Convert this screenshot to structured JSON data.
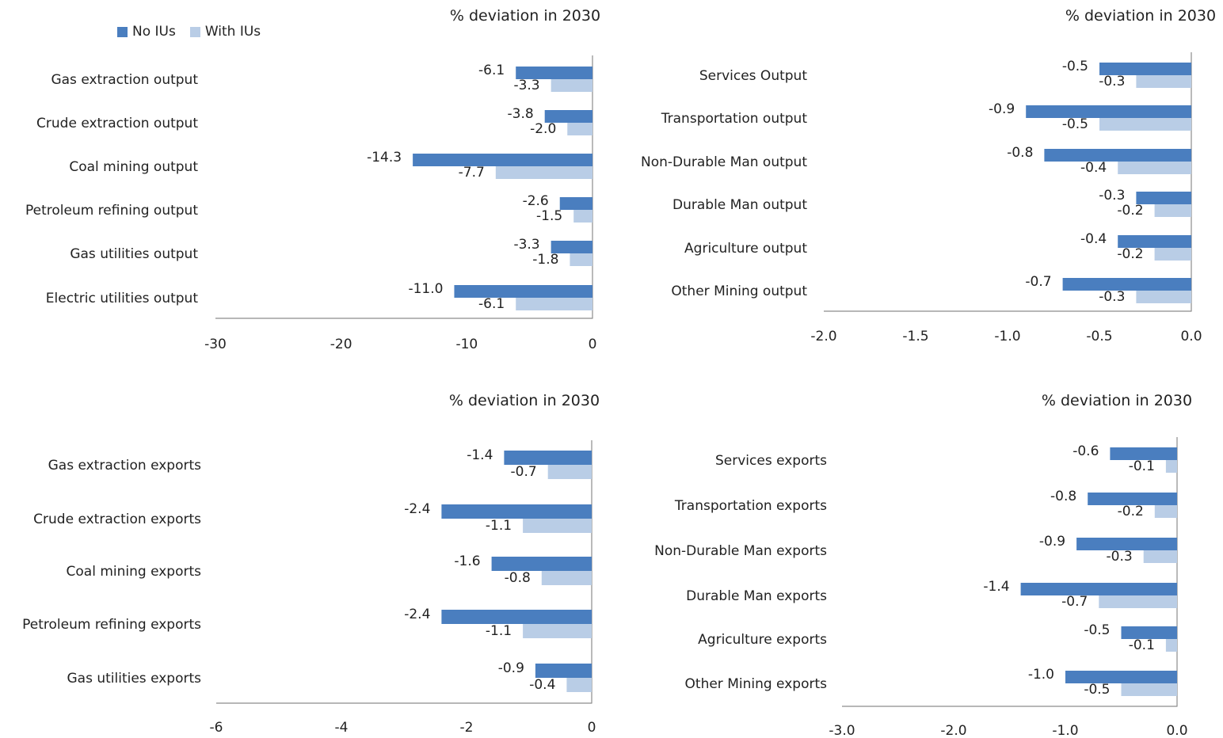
{
  "legend": {
    "no_ius": "No IUs",
    "with_ius": "With IUs"
  },
  "colors": {
    "no_ius": "#4a7ebf",
    "with_ius": "#b9cde6",
    "axis": "#8c8c8c",
    "text": "#222222"
  },
  "chart_data": [
    {
      "type": "bar",
      "orientation": "horizontal",
      "title": "% deviation in 2030",
      "categories": [
        "Gas extraction output",
        "Crude extraction output",
        "Coal mining output",
        "Petroleum refining output",
        "Gas utilities output",
        "Electric utilities output"
      ],
      "series": [
        {
          "name": "No IUs",
          "values": [
            -6.1,
            -3.8,
            -14.3,
            -2.6,
            -3.3,
            -11.0
          ]
        },
        {
          "name": "With IUs",
          "values": [
            -3.3,
            -2.0,
            -7.7,
            -1.5,
            -1.8,
            -6.1
          ]
        }
      ],
      "xlim": [
        -30,
        0
      ],
      "xticks": [
        -30,
        -20,
        -10,
        0
      ],
      "tick_labels": [
        "-30",
        "-20",
        "-10",
        "0"
      ],
      "value_labels": [
        [
          "-6.1",
          "-3.8",
          "-14.3",
          "-2.6",
          "-3.3",
          "-11.0"
        ],
        [
          "-3.3",
          "-2.0",
          "-7.7",
          "-1.5",
          "-1.8",
          "-6.1"
        ]
      ],
      "legend": "top-left"
    },
    {
      "type": "bar",
      "orientation": "horizontal",
      "title": "% deviation in 2030",
      "categories": [
        "Services Output",
        "Transportation output",
        "Non-Durable Man output",
        "Durable Man output",
        "Agriculture output",
        "Other Mining output"
      ],
      "series": [
        {
          "name": "No IUs",
          "values": [
            -0.5,
            -0.9,
            -0.8,
            -0.3,
            -0.4,
            -0.7
          ]
        },
        {
          "name": "With IUs",
          "values": [
            -0.3,
            -0.5,
            -0.4,
            -0.2,
            -0.2,
            -0.3
          ]
        }
      ],
      "xlim": [
        -2.0,
        0.0
      ],
      "xticks": [
        -2.0,
        -1.5,
        -1.0,
        -0.5,
        0.0
      ],
      "tick_labels": [
        "-2.0",
        "-1.5",
        "-1.0",
        "-0.5",
        "0.0"
      ],
      "value_labels": [
        [
          "-0.5",
          "-0.9",
          "-0.8",
          "-0.3",
          "-0.4",
          "-0.7"
        ],
        [
          "-0.3",
          "-0.5",
          "-0.4",
          "-0.2",
          "-0.2",
          "-0.3"
        ]
      ]
    },
    {
      "type": "bar",
      "orientation": "horizontal",
      "title": "% deviation in 2030",
      "categories": [
        "Gas extraction exports",
        "Crude extraction exports",
        "Coal mining exports",
        "Petroleum refining exports",
        "Gas utilities exports"
      ],
      "series": [
        {
          "name": "No IUs",
          "values": [
            -1.4,
            -2.4,
            -1.6,
            -2.4,
            -0.9
          ]
        },
        {
          "name": "With IUs",
          "values": [
            -0.7,
            -1.1,
            -0.8,
            -1.1,
            -0.4
          ]
        }
      ],
      "xlim": [
        -6,
        0
      ],
      "xticks": [
        -6,
        -4,
        -2,
        0
      ],
      "tick_labels": [
        "-6",
        "-4",
        "-2",
        "0"
      ],
      "value_labels": [
        [
          "-1.4",
          "-2.4",
          "-1.6",
          "-2.4",
          "-0.9"
        ],
        [
          "-0.7",
          "-1.1",
          "-0.8",
          "-1.1",
          "-0.4"
        ]
      ]
    },
    {
      "type": "bar",
      "orientation": "horizontal",
      "title": "% deviation in 2030",
      "categories": [
        "Services exports",
        "Transportation exports",
        "Non-Durable Man exports",
        "Durable Man exports",
        "Agriculture exports",
        "Other Mining exports"
      ],
      "series": [
        {
          "name": "No IUs",
          "values": [
            -0.6,
            -0.8,
            -0.9,
            -1.4,
            -0.5,
            -1.0
          ]
        },
        {
          "name": "With IUs",
          "values": [
            -0.1,
            -0.2,
            -0.3,
            -0.7,
            -0.1,
            -0.5
          ]
        }
      ],
      "xlim": [
        -3.0,
        0.0
      ],
      "xticks": [
        -3.0,
        -2.0,
        -1.0,
        0.0
      ],
      "tick_labels": [
        "-3.0",
        "-2.0",
        "-1.0",
        "0.0"
      ],
      "value_labels": [
        [
          "-0.6",
          "-0.8",
          "-0.9",
          "-1.4",
          "-0.5",
          "-1.0"
        ],
        [
          "-0.1",
          "-0.2",
          "-0.3",
          "-0.7",
          "-0.1",
          "-0.5"
        ]
      ]
    }
  ]
}
